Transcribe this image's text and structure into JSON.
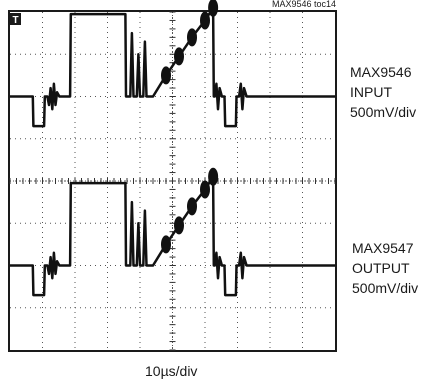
{
  "figure_id": "MAX9546 toc14",
  "trigger_marker": "T",
  "chart_data": {
    "type": "line",
    "title": "",
    "xscale": "10µs/div",
    "divisions": {
      "x": 10,
      "y": 8
    },
    "channels": [
      {
        "name": "MAX9546 INPUT",
        "label_lines": [
          "MAX9546",
          "INPUT",
          "500mV/div"
        ],
        "scale": "500mV/div",
        "baseline_div": 6.0,
        "waveform_div": [
          [
            0.0,
            6.0
          ],
          [
            0.7,
            6.0
          ],
          [
            0.72,
            5.3
          ],
          [
            1.05,
            5.3
          ],
          [
            1.07,
            6.0
          ],
          [
            1.15,
            6.0
          ],
          [
            1.2,
            5.8
          ],
          [
            1.25,
            6.2
          ],
          [
            1.3,
            5.7
          ],
          [
            1.35,
            6.3
          ],
          [
            1.4,
            5.8
          ],
          [
            1.45,
            6.1
          ],
          [
            1.52,
            6.0
          ],
          [
            1.85,
            6.0
          ],
          [
            1.87,
            7.95
          ],
          [
            3.55,
            7.95
          ],
          [
            3.57,
            6.0
          ],
          [
            3.7,
            6.0
          ],
          [
            3.75,
            7.5
          ],
          [
            3.8,
            6.0
          ],
          [
            3.9,
            6.0
          ],
          [
            3.95,
            7.0
          ],
          [
            4.0,
            6.0
          ],
          [
            4.1,
            6.0
          ],
          [
            4.15,
            7.3
          ],
          [
            4.2,
            6.0
          ],
          [
            4.3,
            6.0
          ],
          [
            4.4,
            6.0
          ],
          [
            4.8,
            6.5
          ],
          [
            5.2,
            6.95
          ],
          [
            5.6,
            7.4
          ],
          [
            6.0,
            7.8
          ],
          [
            6.25,
            8.1
          ],
          [
            6.27,
            6.0
          ],
          [
            6.3,
            6.0
          ],
          [
            6.35,
            6.3
          ],
          [
            6.4,
            5.7
          ],
          [
            6.45,
            6.2
          ],
          [
            6.52,
            6.0
          ],
          [
            6.6,
            6.0
          ],
          [
            6.62,
            5.3
          ],
          [
            6.95,
            5.3
          ],
          [
            6.97,
            6.0
          ],
          [
            7.05,
            6.0
          ],
          [
            7.1,
            6.3
          ],
          [
            7.15,
            5.7
          ],
          [
            7.2,
            6.2
          ],
          [
            7.28,
            6.0
          ],
          [
            10.0,
            6.0
          ]
        ]
      },
      {
        "name": "MAX9547 OUTPUT",
        "label_lines": [
          "MAX9547",
          "OUTPUT",
          "500mV/div"
        ],
        "scale": "500mV/div",
        "baseline_div": 2.0,
        "waveform_div": [
          [
            0.0,
            2.0
          ],
          [
            0.7,
            2.0
          ],
          [
            0.72,
            1.3
          ],
          [
            1.05,
            1.3
          ],
          [
            1.07,
            2.0
          ],
          [
            1.15,
            2.0
          ],
          [
            1.2,
            1.8
          ],
          [
            1.25,
            2.2
          ],
          [
            1.3,
            1.7
          ],
          [
            1.35,
            2.3
          ],
          [
            1.4,
            1.8
          ],
          [
            1.45,
            2.1
          ],
          [
            1.52,
            2.0
          ],
          [
            1.85,
            2.0
          ],
          [
            1.87,
            3.95
          ],
          [
            3.55,
            3.95
          ],
          [
            3.57,
            2.0
          ],
          [
            3.7,
            2.0
          ],
          [
            3.75,
            3.5
          ],
          [
            3.8,
            2.0
          ],
          [
            3.9,
            2.0
          ],
          [
            3.95,
            3.0
          ],
          [
            4.0,
            2.0
          ],
          [
            4.1,
            2.0
          ],
          [
            4.15,
            3.3
          ],
          [
            4.2,
            2.0
          ],
          [
            4.3,
            2.0
          ],
          [
            4.4,
            2.0
          ],
          [
            4.8,
            2.5
          ],
          [
            5.2,
            2.95
          ],
          [
            5.6,
            3.4
          ],
          [
            6.0,
            3.8
          ],
          [
            6.25,
            4.1
          ],
          [
            6.27,
            2.0
          ],
          [
            6.3,
            2.0
          ],
          [
            6.35,
            2.3
          ],
          [
            6.4,
            1.7
          ],
          [
            6.45,
            2.2
          ],
          [
            6.52,
            2.0
          ],
          [
            6.6,
            2.0
          ],
          [
            6.62,
            1.3
          ],
          [
            6.95,
            1.3
          ],
          [
            6.97,
            2.0
          ],
          [
            7.05,
            2.0
          ],
          [
            7.1,
            2.3
          ],
          [
            7.15,
            1.7
          ],
          [
            7.2,
            2.2
          ],
          [
            7.28,
            2.0
          ],
          [
            10.0,
            2.0
          ]
        ]
      }
    ]
  }
}
